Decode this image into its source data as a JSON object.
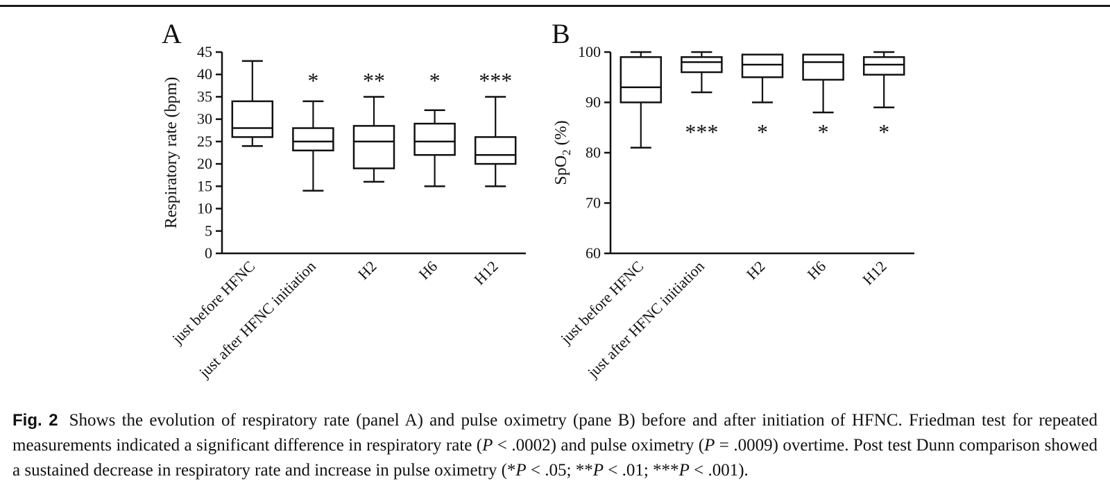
{
  "page": {
    "background": "#ffffff",
    "ink_color": "#111111"
  },
  "chart_data": [
    {
      "type": "boxplot",
      "panel_label": "A",
      "ylabel": "Respiratory rate (bpm)",
      "ylabel_parts": [
        {
          "text": "Respiratory rate (bpm)"
        }
      ],
      "ylim": [
        0,
        45
      ],
      "yticks": [
        0,
        5,
        10,
        15,
        20,
        25,
        30,
        35,
        40,
        45
      ],
      "categories": [
        "just before HFNC",
        "just after HFNC initiation",
        "H2",
        "H6",
        "H12"
      ],
      "boxes": [
        {
          "low": 24,
          "q1": 26,
          "median": 28,
          "q3": 34,
          "high": 43,
          "annotation": ""
        },
        {
          "low": 14,
          "q1": 23,
          "median": 25,
          "q3": 28,
          "high": 34,
          "annotation": "*"
        },
        {
          "low": 16,
          "q1": 19,
          "median": 25,
          "q3": 28.5,
          "high": 35,
          "annotation": "**"
        },
        {
          "low": 15,
          "q1": 22,
          "median": 25,
          "q3": 29,
          "high": 32,
          "annotation": "*"
        },
        {
          "low": 15,
          "q1": 20,
          "median": 22,
          "q3": 26,
          "high": 35,
          "annotation": "***"
        }
      ],
      "annotation_side": "above",
      "annotation_value": 38.5,
      "grid": false,
      "legend": "none"
    },
    {
      "type": "boxplot",
      "panel_label": "B",
      "ylabel": "SpO2 (%)",
      "ylabel_parts": [
        {
          "text": "SpO"
        },
        {
          "text": "2",
          "sub": true
        },
        {
          "text": " (%)"
        }
      ],
      "ylim": [
        60,
        100
      ],
      "yticks": [
        60,
        70,
        80,
        90,
        100
      ],
      "categories": [
        "just before HFNC",
        "just after HFNC initiation",
        "H2",
        "H6",
        "H12"
      ],
      "boxes": [
        {
          "low": 81,
          "q1": 90,
          "median": 93,
          "q3": 99,
          "high": 100,
          "annotation": ""
        },
        {
          "low": 92,
          "q1": 96,
          "median": 98,
          "q3": 99,
          "high": 100,
          "annotation": "***"
        },
        {
          "low": 90,
          "q1": 95,
          "median": 97.5,
          "q3": 99.5,
          "high": 99.5,
          "annotation": "*"
        },
        {
          "low": 88,
          "q1": 94.5,
          "median": 98,
          "q3": 99.5,
          "high": 99.5,
          "annotation": "*"
        },
        {
          "low": 89,
          "q1": 95.5,
          "median": 97.5,
          "q3": 99,
          "high": 100,
          "annotation": "*"
        }
      ],
      "annotation_side": "below",
      "annotation_value": 84,
      "grid": false,
      "legend": "none"
    }
  ],
  "caption": {
    "label": "Fig. 2",
    "segments": [
      {
        "text": "Fig. 2",
        "bold": true,
        "sans": true
      },
      {
        "text": "Shows the evolution of respiratory rate (panel A) and pulse oximetry (pane B) before and after initiation of HFNC. Friedman test for repeated measurements indicated a significant difference in respiratory rate ("
      },
      {
        "text": "P",
        "italic": true
      },
      {
        "text": " < .0002) and pulse oximetry ("
      },
      {
        "text": "P",
        "italic": true
      },
      {
        "text": " = .0009) overtime. Post test Dunn comparison showed a sustained decrease in respiratory rate and increase in pulse oximetry (*"
      },
      {
        "text": "P",
        "italic": true
      },
      {
        "text": " < .05; **"
      },
      {
        "text": "P",
        "italic": true
      },
      {
        "text": " < .01; ***"
      },
      {
        "text": "P",
        "italic": true
      },
      {
        "text": " < .001)."
      }
    ]
  }
}
